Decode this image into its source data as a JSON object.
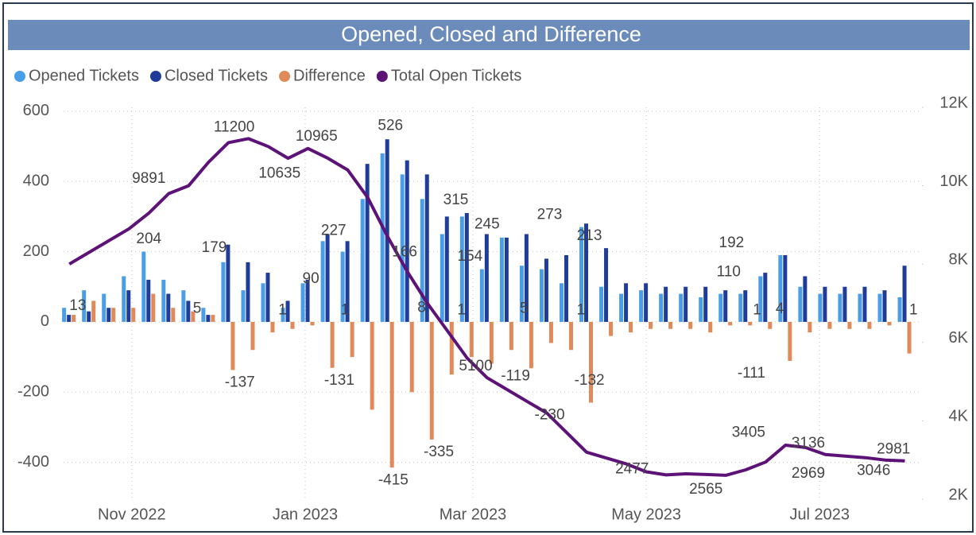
{
  "chart_data": {
    "type": "bar-line",
    "title": "Opened, Closed and Difference",
    "x": [
      "2022-10-10",
      "2022-10-17",
      "2022-10-24",
      "2022-10-31",
      "2022-11-07",
      "2022-11-14",
      "2022-11-21",
      "2022-11-28",
      "2022-12-05",
      "2022-12-12",
      "2022-12-19",
      "2022-12-26",
      "2023-01-02",
      "2023-01-09",
      "2023-01-16",
      "2023-01-23",
      "2023-01-30",
      "2023-02-06",
      "2023-02-13",
      "2023-02-20",
      "2023-02-27",
      "2023-03-06",
      "2023-03-13",
      "2023-03-20",
      "2023-03-27",
      "2023-04-03",
      "2023-04-10",
      "2023-04-17",
      "2023-04-24",
      "2023-05-01",
      "2023-05-08",
      "2023-05-15",
      "2023-05-22",
      "2023-05-29",
      "2023-06-05",
      "2023-06-12",
      "2023-06-19",
      "2023-06-26",
      "2023-07-03",
      "2023-07-10",
      "2023-07-17",
      "2023-07-24",
      "2023-07-31"
    ],
    "series": [
      {
        "name": "Opened Tickets",
        "color": "#4a9ee8",
        "values": [
          40,
          90,
          80,
          130,
          200,
          120,
          90,
          40,
          170,
          90,
          110,
          40,
          110,
          230,
          200,
          350,
          480,
          420,
          350,
          250,
          300,
          150,
          240,
          160,
          150,
          110,
          270,
          100,
          80,
          90,
          80,
          80,
          70,
          80,
          80,
          130,
          190,
          100,
          80,
          80,
          80,
          80,
          70
        ]
      },
      {
        "name": "Closed Tickets",
        "color": "#1f3c99",
        "values": [
          20,
          30,
          40,
          90,
          120,
          80,
          60,
          20,
          220,
          170,
          140,
          60,
          120,
          250,
          230,
          450,
          520,
          460,
          420,
          300,
          310,
          250,
          240,
          250,
          180,
          190,
          280,
          210,
          110,
          110,
          100,
          100,
          100,
          90,
          90,
          140,
          190,
          130,
          100,
          100,
          100,
          90,
          160
        ]
      },
      {
        "name": "Difference",
        "color": "#e08a5a",
        "values": [
          20,
          60,
          40,
          40,
          80,
          40,
          30,
          20,
          -137,
          -80,
          -30,
          -20,
          -10,
          -131,
          -100,
          -250,
          -415,
          -200,
          -335,
          -150,
          -100,
          -119,
          -80,
          -132,
          -60,
          -80,
          -230,
          -40,
          -30,
          -20,
          -20,
          -20,
          -30,
          -10,
          -10,
          -20,
          -111,
          -30,
          -20,
          -20,
          -20,
          -10,
          -90
        ]
      },
      {
        "name": "Total Open Tickets",
        "color": "#5c1277",
        "axis": "y2",
        "values": [
          8000,
          8300,
          8600,
          8900,
          9300,
          9800,
          10000,
          10600,
          11100,
          11200,
          11000,
          10700,
          10950,
          10700,
          10400,
          9700,
          8700,
          7800,
          7000,
          6300,
          5600,
          5100,
          4800,
          4500,
          4200,
          3700,
          3200,
          3050,
          2900,
          2700,
          2620,
          2650,
          2630,
          2610,
          2750,
          2950,
          3380,
          3320,
          3140,
          3100,
          3060,
          3000,
          2980
        ]
      }
    ],
    "xlim": [
      "2022-10-08",
      "2023-08-06"
    ],
    "xticks": [
      {
        "value": "2022-11-01",
        "label": "Nov 2022"
      },
      {
        "value": "2023-01-01",
        "label": "Jan 2023"
      },
      {
        "value": "2023-03-01",
        "label": "Mar 2023"
      },
      {
        "value": "2023-05-01",
        "label": "May 2023"
      },
      {
        "value": "2023-07-01",
        "label": "Jul 2023"
      }
    ],
    "ylim": [
      -505,
      611
    ],
    "yticks": [
      600,
      400,
      200,
      0,
      -200,
      -400
    ],
    "y2lim": [
      2000,
      12000
    ],
    "y2ticks": [
      {
        "value": 12000,
        "label": "12K"
      },
      {
        "value": 10000,
        "label": "10K"
      },
      {
        "value": 8000,
        "label": "8K"
      },
      {
        "value": 6000,
        "label": "6K"
      },
      {
        "value": 4000,
        "label": "4K"
      },
      {
        "value": 2000,
        "label": "2K"
      }
    ],
    "grid": true,
    "legend": "top-left",
    "annotations": [
      {
        "x": "2022-10-13",
        "value": 13
      },
      {
        "x": "2022-11-07",
        "value": 204
      },
      {
        "x": "2022-11-24",
        "value": 5
      },
      {
        "x": "2022-11-30",
        "value": 179
      },
      {
        "x": "2022-12-24",
        "value": 1
      },
      {
        "x": "2023-01-03",
        "value": 90
      },
      {
        "x": "2023-01-11",
        "value": 227
      },
      {
        "x": "2023-01-15",
        "value": 1
      },
      {
        "x": "2023-01-31",
        "value": 526
      },
      {
        "x": "2023-02-05",
        "value": 166
      },
      {
        "x": "2023-02-11",
        "value": 8
      },
      {
        "x": "2023-02-25",
        "value": 1
      },
      {
        "x": "2023-02-23",
        "value": 315
      },
      {
        "x": "2023-02-28",
        "value": 154
      },
      {
        "x": "2023-03-06",
        "value": 245
      },
      {
        "x": "2023-03-19",
        "value": 5
      },
      {
        "x": "2023-03-28",
        "value": 273
      },
      {
        "x": "2023-04-08",
        "value": 1
      },
      {
        "x": "2023-04-11",
        "value": 213
      },
      {
        "x": "2023-05-31",
        "value": 192
      },
      {
        "x": "2023-05-30",
        "value": 110
      },
      {
        "x": "2023-06-09",
        "value": 1
      },
      {
        "x": "2023-06-17",
        "value": 4
      },
      {
        "x": "2023-08-03",
        "value": 1
      },
      {
        "x": "2022-12-09",
        "value": -137
      },
      {
        "x": "2023-01-13",
        "value": -131
      },
      {
        "x": "2023-02-01",
        "value": -415
      },
      {
        "x": "2023-02-17",
        "value": -335
      },
      {
        "x": "2023-03-16",
        "value": -119
      },
      {
        "x": "2023-04-11",
        "value": -132
      },
      {
        "x": "2023-03-28",
        "value": -230
      },
      {
        "x": "2023-06-07",
        "value": -111
      },
      {
        "x": "2022-11-07",
        "value": 9891,
        "axis": "y2"
      },
      {
        "x": "2022-12-07",
        "value": 11200,
        "axis": "y2"
      },
      {
        "x": "2022-12-23",
        "value": 10635,
        "axis": "y2",
        "position": "below"
      },
      {
        "x": "2023-01-05",
        "value": 10965,
        "axis": "y2"
      },
      {
        "x": "2023-03-02",
        "value": 5100,
        "axis": "y2"
      },
      {
        "x": "2023-04-26",
        "value": 2477,
        "axis": "y2"
      },
      {
        "x": "2023-05-22",
        "value": 2565,
        "axis": "y2",
        "position": "below"
      },
      {
        "x": "2023-06-06",
        "value": 3405,
        "axis": "y2"
      },
      {
        "x": "2023-06-27",
        "value": 3136,
        "axis": "y2"
      },
      {
        "x": "2023-06-27",
        "value": 2969,
        "axis": "y2",
        "position": "below"
      },
      {
        "x": "2023-07-20",
        "value": 3046,
        "axis": "y2",
        "position": "below"
      },
      {
        "x": "2023-07-27",
        "value": 2981,
        "axis": "y2"
      }
    ]
  }
}
